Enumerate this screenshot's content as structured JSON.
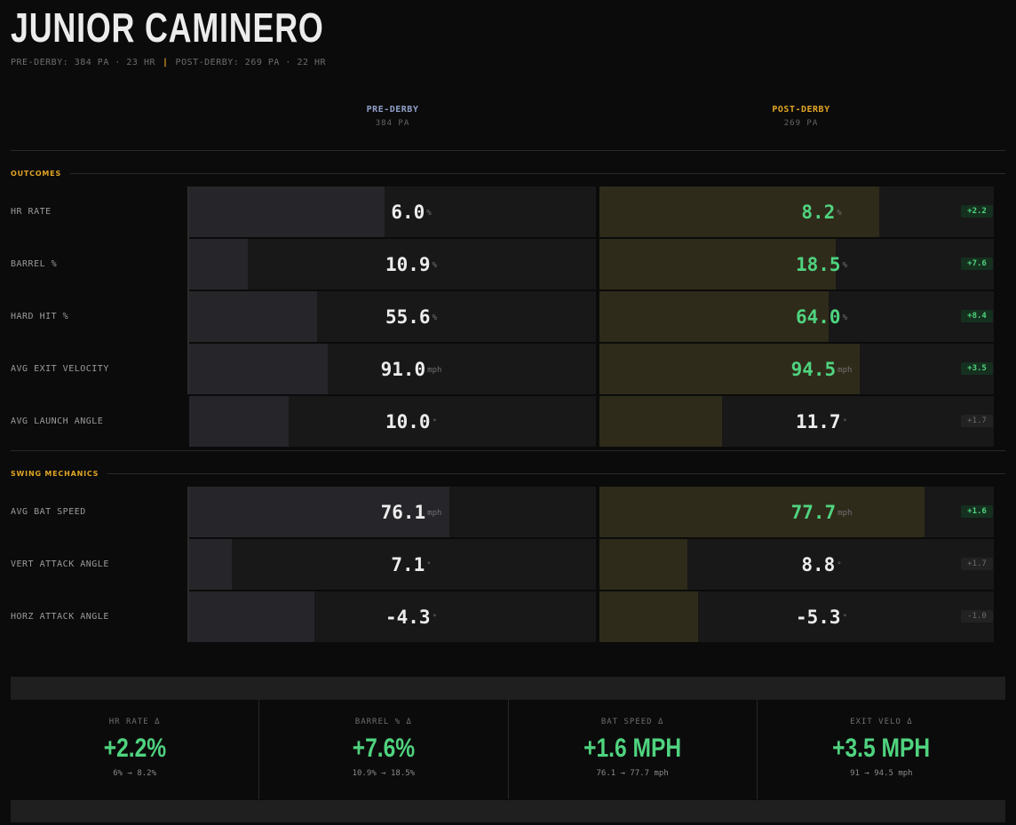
{
  "header": {
    "title": "JUNIOR CAMINERO",
    "subtitle_pre": "PRE-DERBY: 384 PA · 23 HR",
    "subtitle_sep": "|",
    "subtitle_post": "POST-DERBY: 269 PA · 22 HR"
  },
  "columns": {
    "pre": {
      "name": "PRE-DERBY",
      "sub": "384 PA"
    },
    "post": {
      "name": "POST-DERBY",
      "sub": "269 PA"
    }
  },
  "sections": {
    "outcomes": "OUTCOMES",
    "swing": "SWING MECHANICS"
  },
  "metrics": [
    {
      "label": "HR RATE",
      "pre": "6.0",
      "post": "8.2",
      "unit": "%",
      "delta": "+2.2",
      "improved": true,
      "pre_fill": 0.48,
      "post_fill": 0.71
    },
    {
      "label": "BARREL %",
      "pre": "10.9",
      "post": "18.5",
      "unit": "%",
      "delta": "+7.6",
      "improved": true,
      "pre_fill": 0.145,
      "post_fill": 0.6
    },
    {
      "label": "HARD HIT %",
      "pre": "55.6",
      "post": "64.0",
      "unit": "%",
      "delta": "+8.4",
      "improved": true,
      "pre_fill": 0.315,
      "post_fill": 0.582
    },
    {
      "label": "AVG EXIT VELOCITY",
      "pre": "91.0",
      "post": "94.5",
      "unit": "mph",
      "delta": "+3.5",
      "improved": true,
      "pre_fill": 0.34,
      "post_fill": 0.66
    },
    {
      "label": "AVG LAUNCH ANGLE",
      "pre": "10.0",
      "post": "11.7",
      "unit": "°",
      "delta": "+1.7",
      "improved": false,
      "pre_fill": 0.245,
      "post_fill": 0.31
    },
    {
      "label": "AVG BAT SPEED",
      "pre": "76.1",
      "post": "77.7",
      "unit": "mph",
      "delta": "+1.6",
      "improved": true,
      "pre_fill": 0.64,
      "post_fill": 0.824
    },
    {
      "label": "VERT ATTACK ANGLE",
      "pre": "7.1",
      "post": "8.8",
      "unit": "°",
      "delta": "+1.7",
      "improved": false,
      "pre_fill": 0.105,
      "post_fill": 0.223
    },
    {
      "label": "HORZ ATTACK ANGLE",
      "pre": "-4.3",
      "post": "-5.3",
      "unit": "°",
      "delta": "-1.0",
      "improved": false,
      "pre_fill": 0.307,
      "post_fill": 0.25
    }
  ],
  "summary": [
    {
      "label": "HR RATE Δ",
      "value": "+2.2%",
      "sub": "6% → 8.2%"
    },
    {
      "label": "BARREL % Δ",
      "value": "+7.6%",
      "sub": "10.9% → 18.5%"
    },
    {
      "label": "BAT SPEED Δ",
      "value": "+1.6 MPH",
      "sub": "76.1 → 77.7 mph"
    },
    {
      "label": "EXIT VELO Δ",
      "value": "+3.5 MPH",
      "sub": "91 → 94.5 mph"
    }
  ],
  "colors": {
    "accent": "#e0a526",
    "positive": "#4fd37f",
    "pre_header": "#8f9fc8"
  }
}
